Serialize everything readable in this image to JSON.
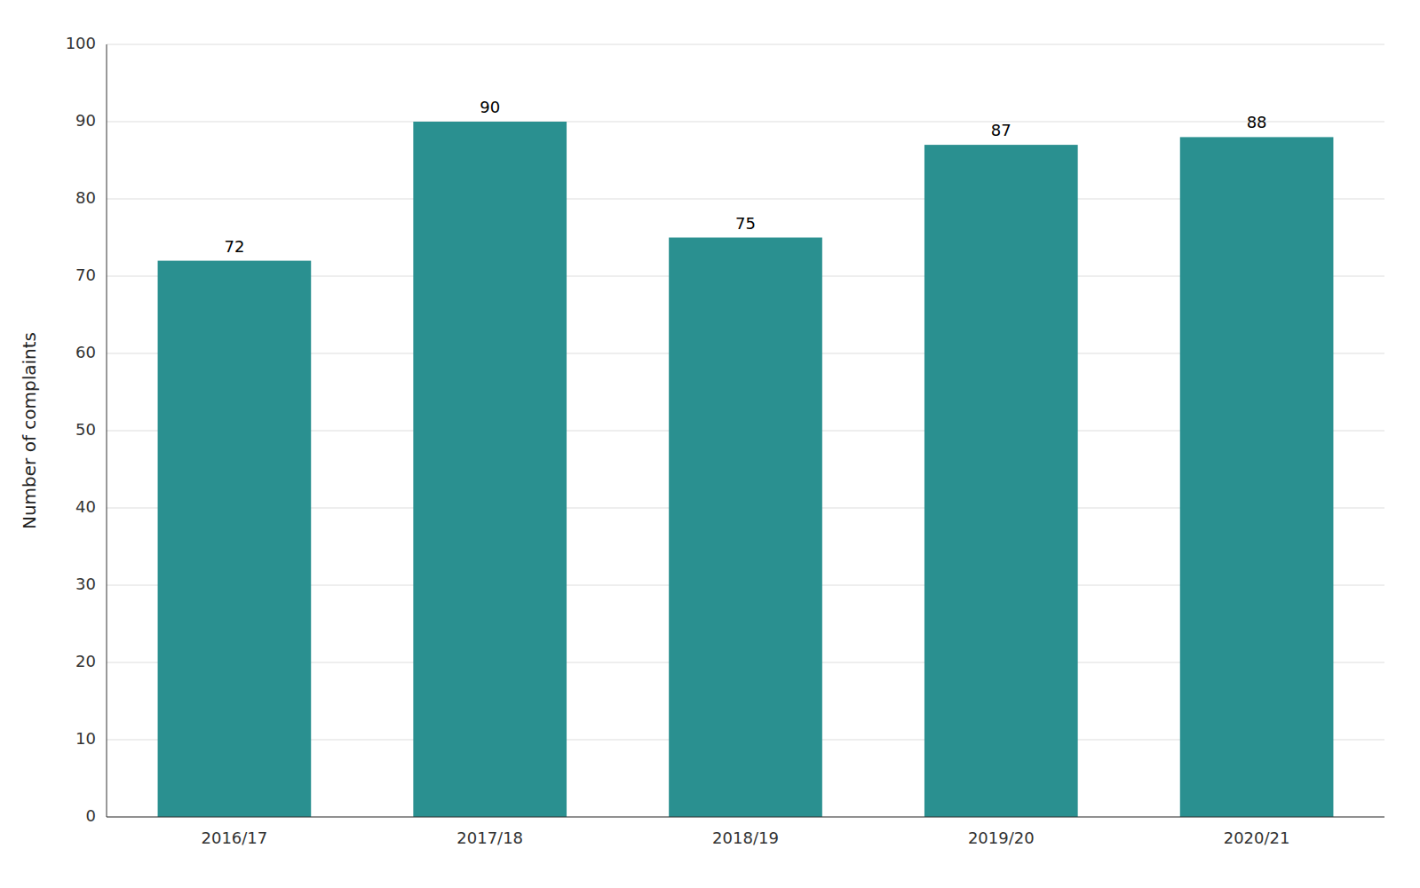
{
  "chart_data": {
    "type": "bar",
    "categories": [
      "2016/17",
      "2017/18",
      "2018/19",
      "2019/20",
      "2020/21"
    ],
    "values": [
      72,
      90,
      75,
      87,
      88
    ],
    "color": "#2a9090",
    "ylabel": "Number of complaints",
    "ylim": [
      0,
      100
    ],
    "yticks": [
      0,
      10,
      20,
      30,
      40,
      50,
      60,
      70,
      80,
      90,
      100
    ],
    "grid": true,
    "data_labels": true
  }
}
